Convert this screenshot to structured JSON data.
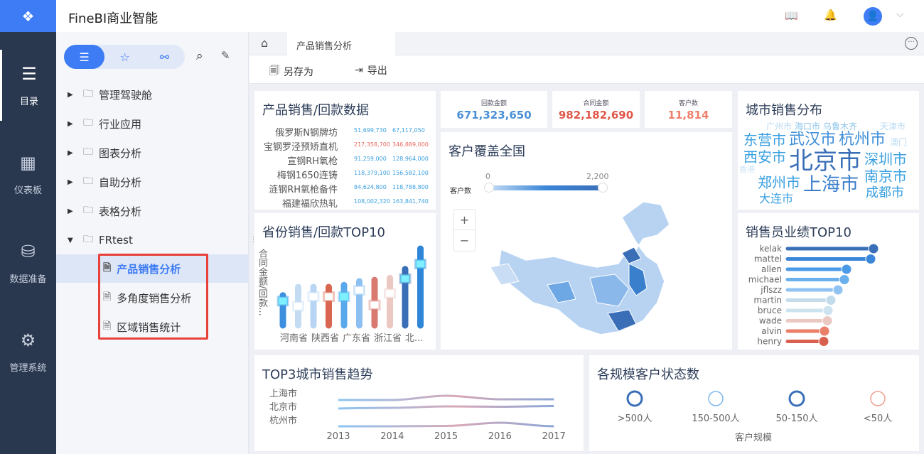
{
  "app": {
    "title": "FineBI商业智能",
    "logo_icon": "finebi-logo-icon",
    "accent": "#3d7cf5"
  },
  "header": {
    "icons": [
      "book-icon",
      "bell-icon",
      "user-avatar-icon",
      "chevron-down-icon"
    ]
  },
  "leftnav": {
    "items": [
      {
        "label": "目录",
        "icon": "list-icon",
        "active": true
      },
      {
        "label": "仪表板",
        "icon": "dashboard-icon"
      },
      {
        "label": "数据准备",
        "icon": "database-icon"
      },
      {
        "label": "管理系统",
        "icon": "gear-icon"
      }
    ]
  },
  "tree": {
    "tabs": [
      "list-icon",
      "star-icon",
      "share-icon"
    ],
    "folders": [
      {
        "label": "管理驾驶舱"
      },
      {
        "label": "行业应用"
      },
      {
        "label": "图表分析"
      },
      {
        "label": "自助分析"
      },
      {
        "label": "表格分析"
      },
      {
        "label": "FRtest",
        "expanded": true
      }
    ],
    "children": [
      {
        "label": "产品销售分析",
        "selected": true
      },
      {
        "label": "多角度销售分析"
      },
      {
        "label": "区域销售统计"
      }
    ]
  },
  "tabs": {
    "active": "产品销售分析"
  },
  "toolbar": {
    "save_as": "另存为",
    "export": "导出"
  },
  "widgets": {
    "product": {
      "title": "产品销售/回款数据",
      "rows": [
        {
          "name": "俄罗斯N钢牌坊",
          "a": "51,699,730",
          "b": "67,117,050",
          "color": "#3aa0e0"
        },
        {
          "name": "宝钢罗泾预矫直机",
          "a": "217,358,700",
          "b": "346,889,000",
          "color": "#e86a5e"
        },
        {
          "name": "宣钢RH氧枪",
          "a": "91,259,000",
          "b": "128,964,000",
          "color": "#3aa0e0"
        },
        {
          "name": "梅钢1650连铸",
          "a": "118,379,100",
          "b": "156,582,100",
          "color": "#3aa0e0"
        },
        {
          "name": "涟钢RH氧枪备件",
          "a": "84,624,800",
          "b": "118,788,800",
          "color": "#3aa0e0"
        },
        {
          "name": "福建福欣热轧",
          "a": "108,002,320",
          "b": "163,841,740",
          "color": "#3aa0e0"
        }
      ]
    },
    "kpis": [
      {
        "label": "回款金额",
        "value": "671,323,650",
        "color": "#4a90d6"
      },
      {
        "label": "合同金额",
        "value": "982,182,690",
        "color": "#e0584a"
      },
      {
        "label": "客户数",
        "value": "11,814",
        "color": "#f07e6a"
      }
    ],
    "map": {
      "title": "客户覆盖全国",
      "legend_label": "客户数",
      "min": "0",
      "max": "2,200",
      "zoom_in": "+",
      "zoom_out": "−"
    },
    "cities": {
      "title": "城市销售分布",
      "words": [
        {
          "t": "广州市",
          "c": "#b7d9f2"
        },
        {
          "t": "海口市",
          "c": "#8cc4ec"
        },
        {
          "t": "乌鲁木齐",
          "c": "#8cc4ec"
        },
        {
          "t": "天津市",
          "c": "#b7d9f2"
        },
        {
          "t": "东营市",
          "c": "#3aa0e0"
        },
        {
          "t": "武汉市",
          "c": "#3f8fd8"
        },
        {
          "t": "杭州市",
          "c": "#3f8fd8"
        },
        {
          "t": "澳门",
          "c": "#b7d9f2"
        },
        {
          "t": "西安市",
          "c": "#3aa0e0"
        },
        {
          "t": "北京市",
          "c": "#3a6fb8"
        },
        {
          "t": "深圳市",
          "c": "#3aa0e0"
        },
        {
          "t": "香港",
          "c": "#c9e2f5"
        },
        {
          "t": "郑州市",
          "c": "#3aa0e0"
        },
        {
          "t": "上海市",
          "c": "#3a7fcc"
        },
        {
          "t": "南京市",
          "c": "#3aa0e0"
        },
        {
          "t": "大连市",
          "c": "#3aa0e0"
        },
        {
          "t": "成都市",
          "c": "#3aa0e0"
        }
      ]
    },
    "salesmen": {
      "title": "销售员业绩TOP10"
    },
    "trend": {
      "title": "TOP3城市销售趋势"
    },
    "status": {
      "title": "各规模客户状态数",
      "xlabel": "客户规模"
    }
  },
  "chart_data": [
    {
      "type": "bar",
      "title": "省份销售/回款TOP10",
      "ylabel": "合同金额/回款...",
      "tick_labels": [
        "河南省",
        "陕西省",
        "广东省",
        "浙江省",
        "北..."
      ],
      "series": [
        {
          "values": [
            47,
            60,
            60,
            60,
            63,
            69,
            71,
            74,
            88,
            120
          ],
          "colors": [
            "#3d8fe0",
            "#c4dcf2",
            "#b8d6f4",
            "#d96650",
            "#5aa8ec",
            "#8cc0f0",
            "#d87a72",
            "#ecc8c2",
            "#3a6fb8",
            "#2f86d8"
          ]
        },
        {
          "values": [
            38,
            30,
            45,
            45,
            45,
            55,
            32,
            50,
            73,
            96
          ]
        }
      ]
    },
    {
      "type": "bar",
      "title": "销售员业绩TOP10",
      "categories": [
        "kelak",
        "mattel",
        "allen",
        "michael",
        "jflszz",
        "martin",
        "bruce",
        "wade",
        "alvin",
        "henry"
      ],
      "values": [
        121,
        117,
        83,
        80,
        71,
        61,
        57,
        56,
        52,
        51
      ],
      "colors": [
        "#3a6fb8",
        "#3a86d8",
        "#4b9ae8",
        "#69b0ec",
        "#90c3f2",
        "#c2dceb",
        "#cde4f0",
        "#ecc8c2",
        "#ea7f6a",
        "#d9604e"
      ]
    },
    {
      "type": "line",
      "title": "TOP3城市销售趋势",
      "x": [
        "2013",
        "2014",
        "2015",
        "2016",
        "2017"
      ],
      "series": [
        {
          "name": "上海市",
          "values": [
            3,
            3,
            3.6,
            3.1,
            3.1
          ]
        },
        {
          "name": "北京市",
          "values": [
            2,
            2.1,
            2.3,
            2.25,
            2.35
          ]
        },
        {
          "name": "杭州市",
          "values": [
            1,
            1,
            1.05,
            1.5,
            1
          ]
        }
      ]
    },
    {
      "type": "pie",
      "title": "各规模客户状态数",
      "categories": [
        ">500人",
        "150-500人",
        "50-150人",
        "<50人"
      ],
      "colors": [
        "#3a6fb8",
        "#7fb8ec",
        "#3a6fb8",
        "#f0a090"
      ]
    }
  ]
}
